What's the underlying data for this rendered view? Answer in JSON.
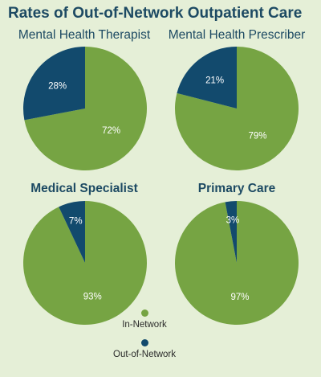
{
  "chart_data": {
    "title": "Rates of Out-of-Network Outpatient Care",
    "type": "pie",
    "colors": {
      "in_network": "#76a443",
      "out_network": "#124a6d"
    },
    "legend": [
      {
        "name": "In-Network",
        "color": "#76a443"
      },
      {
        "name": "Out-of-Network",
        "color": "#124a6d"
      }
    ],
    "legend_placement": "bottom-center",
    "charts": [
      {
        "title": "Mental Health Therapist",
        "bold": false,
        "slices": [
          {
            "name": "In-Network",
            "value": 72,
            "label": "72%"
          },
          {
            "name": "Out-of-Network",
            "value": 28,
            "label": "28%"
          }
        ]
      },
      {
        "title": "Mental Health Prescriber",
        "bold": false,
        "slices": [
          {
            "name": "In-Network",
            "value": 79,
            "label": "79%"
          },
          {
            "name": "Out-of-Network",
            "value": 21,
            "label": "21%"
          }
        ]
      },
      {
        "title": "Medical Specialist",
        "bold": true,
        "slices": [
          {
            "name": "In-Network",
            "value": 93,
            "label": "93%"
          },
          {
            "name": "Out-of-Network",
            "value": 7,
            "label": "7%"
          }
        ]
      },
      {
        "title": "Primary Care",
        "bold": true,
        "slices": [
          {
            "name": "In-Network",
            "value": 97,
            "label": "97%"
          },
          {
            "name": "Out-of-Network",
            "value": 3,
            "label": "3%"
          }
        ]
      }
    ]
  }
}
